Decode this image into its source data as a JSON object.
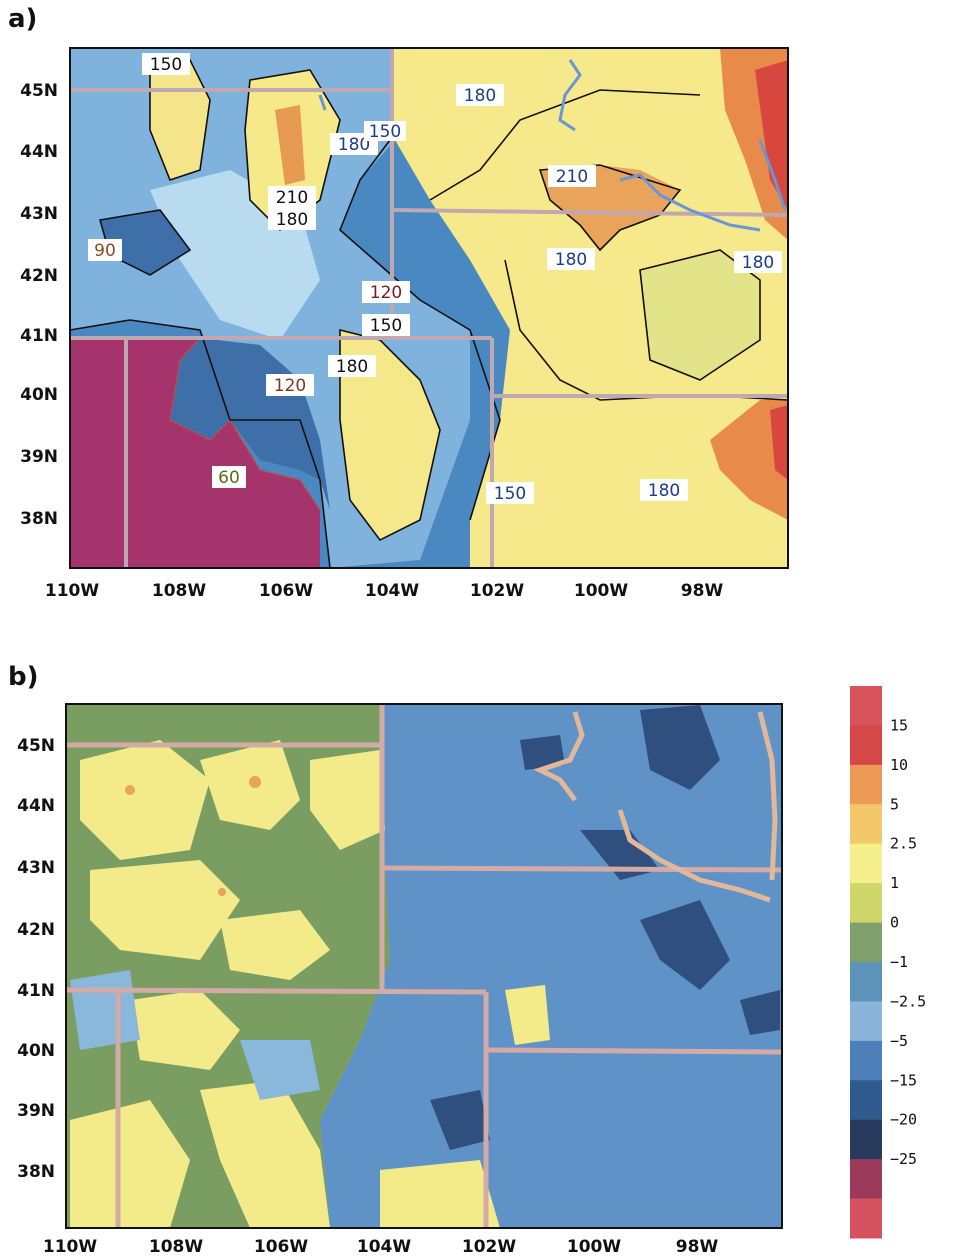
{
  "panel_a": {
    "label": "a)",
    "lat_ticks": [
      "45N",
      "44N",
      "43N",
      "42N",
      "41N",
      "40N",
      "39N",
      "38N"
    ],
    "lon_ticks": [
      "110W",
      "108W",
      "106W",
      "104W",
      "102W",
      "100W",
      "98W"
    ],
    "contour_labels": [
      {
        "text": "150",
        "color": "#111111"
      },
      {
        "text": "180",
        "color": "#1a3c8c"
      },
      {
        "text": "180",
        "color": "#1a3c8c"
      },
      {
        "text": "150",
        "color": "#1a3c8c"
      },
      {
        "text": "210",
        "color": "#1a3c8c"
      },
      {
        "text": "210",
        "color": "#111111"
      },
      {
        "text": "180",
        "color": "#111111"
      },
      {
        "text": "90",
        "color": "#8a4a1a"
      },
      {
        "text": "180",
        "color": "#1a3c8c"
      },
      {
        "text": "180",
        "color": "#1a3c8c"
      },
      {
        "text": "120",
        "color": "#7a1a1a"
      },
      {
        "text": "150",
        "color": "#111111"
      },
      {
        "text": "180",
        "color": "#111111"
      },
      {
        "text": "120",
        "color": "#7a3a1a"
      },
      {
        "text": "60",
        "color": "#5a6a1a"
      },
      {
        "text": "150",
        "color": "#1a3c8c"
      },
      {
        "text": "180",
        "color": "#1a3c8c"
      }
    ]
  },
  "panel_b": {
    "label": "b)",
    "lat_ticks": [
      "45N",
      "44N",
      "43N",
      "42N",
      "41N",
      "40N",
      "39N",
      "38N"
    ],
    "lon_ticks": [
      "110W",
      "108W",
      "106W",
      "104W",
      "102W",
      "100W",
      "98W"
    ]
  },
  "legend": {
    "levels": [
      "15",
      "10",
      "5",
      "2.5",
      "1",
      "0",
      "−1",
      "−2.5",
      "−5",
      "−15",
      "−20",
      "−25"
    ],
    "colors": [
      "#d9535a",
      "#d64848",
      "#ec9a55",
      "#f3c86a",
      "#f6f08c",
      "#cfd66a",
      "#7fa06a",
      "#5e93b9",
      "#8ab4d8",
      "#4e7fb8",
      "#2f5a8e",
      "#283a5e",
      "#9b3a5a",
      "#d6525f"
    ]
  },
  "colors": {
    "purple": "#a6346c",
    "dark_blue": "#4a7fb5",
    "light_blue": "#b6d7ec",
    "yellow": "#f5e98a",
    "orange": "#e8944e",
    "red": "#d6413a",
    "green": "#7fa163",
    "border": "#c8a8a8",
    "river": "#6b95d6"
  }
}
